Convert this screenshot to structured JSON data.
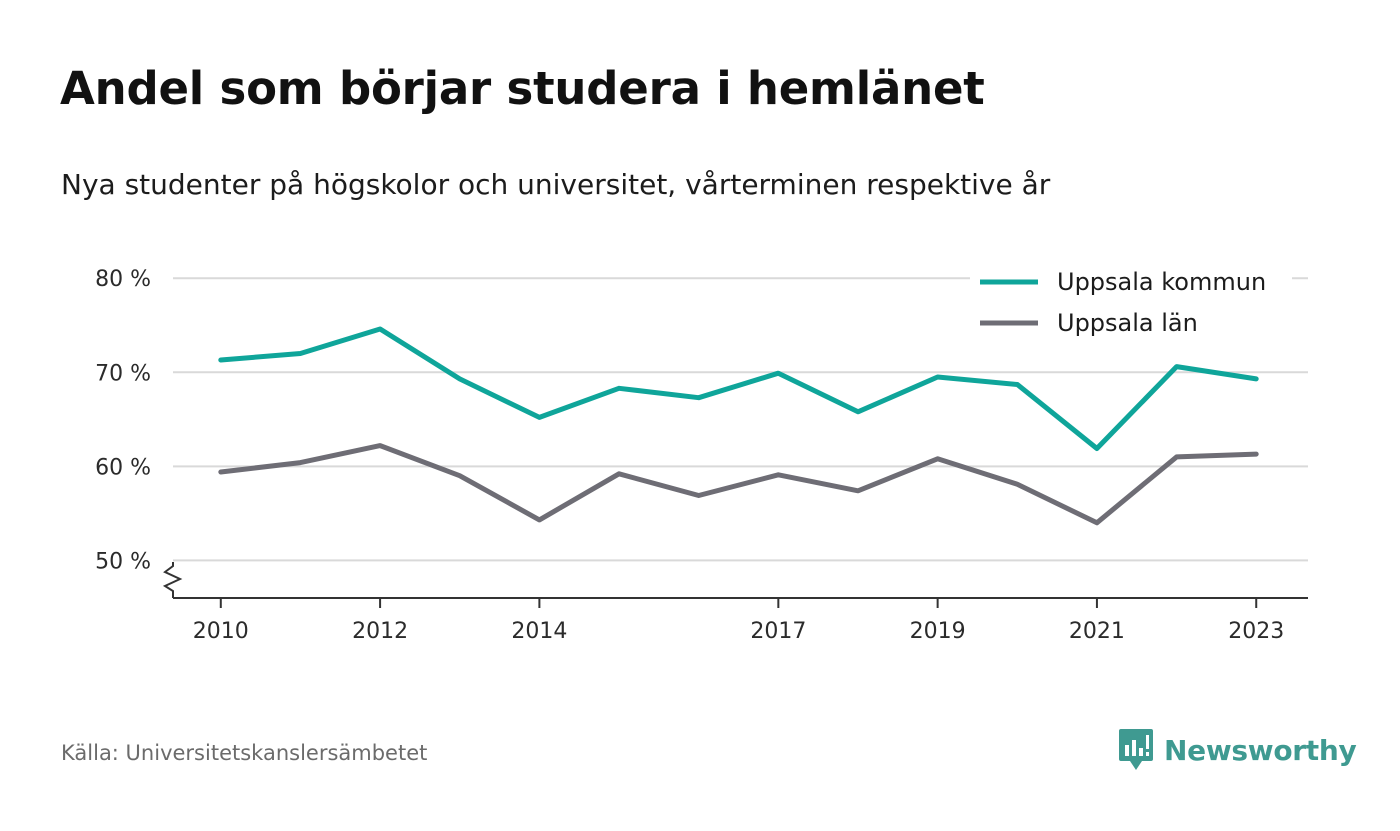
{
  "title": "Andel som börjar studera i hemlänet",
  "subtitle": "Nya studenter på högskolor och universitet, vårterminen respektive år",
  "source": "Källa: Universitetskanslersämbetet",
  "brand": {
    "name": "Newsworthy",
    "icon": "newsworthy-logo-icon",
    "color": "#3f9a91"
  },
  "chart_data": {
    "type": "line",
    "x": [
      2010,
      2011,
      2012,
      2013,
      2014,
      2015,
      2016,
      2017,
      2018,
      2019,
      2020,
      2021,
      2022,
      2023
    ],
    "x_tick_labels": [
      "2010",
      "2012",
      "2014",
      "2017",
      "2019",
      "2021",
      "2023"
    ],
    "y_tick_labels": [
      "50 %",
      "60 %",
      "70 %",
      "80 %"
    ],
    "y_ticks": [
      50,
      60,
      70,
      80
    ],
    "ylim": [
      46,
      83
    ],
    "xlim": [
      2009.4,
      2023.65
    ],
    "y_axis_break": true,
    "grid": true,
    "legend_position": "top-right",
    "xlabel": "",
    "ylabel": "",
    "series": [
      {
        "name": "Uppsala kommun",
        "color": "#0fa59a",
        "values": [
          71.3,
          72.0,
          74.6,
          69.3,
          65.2,
          68.3,
          67.3,
          69.9,
          65.8,
          69.5,
          68.7,
          61.9,
          70.6,
          69.3
        ]
      },
      {
        "name": "Uppsala län",
        "color": "#6e6d75",
        "values": [
          59.4,
          60.4,
          62.2,
          59.0,
          54.3,
          59.2,
          56.9,
          59.1,
          57.4,
          60.8,
          58.1,
          54.0,
          61.0,
          61.3
        ]
      }
    ]
  }
}
